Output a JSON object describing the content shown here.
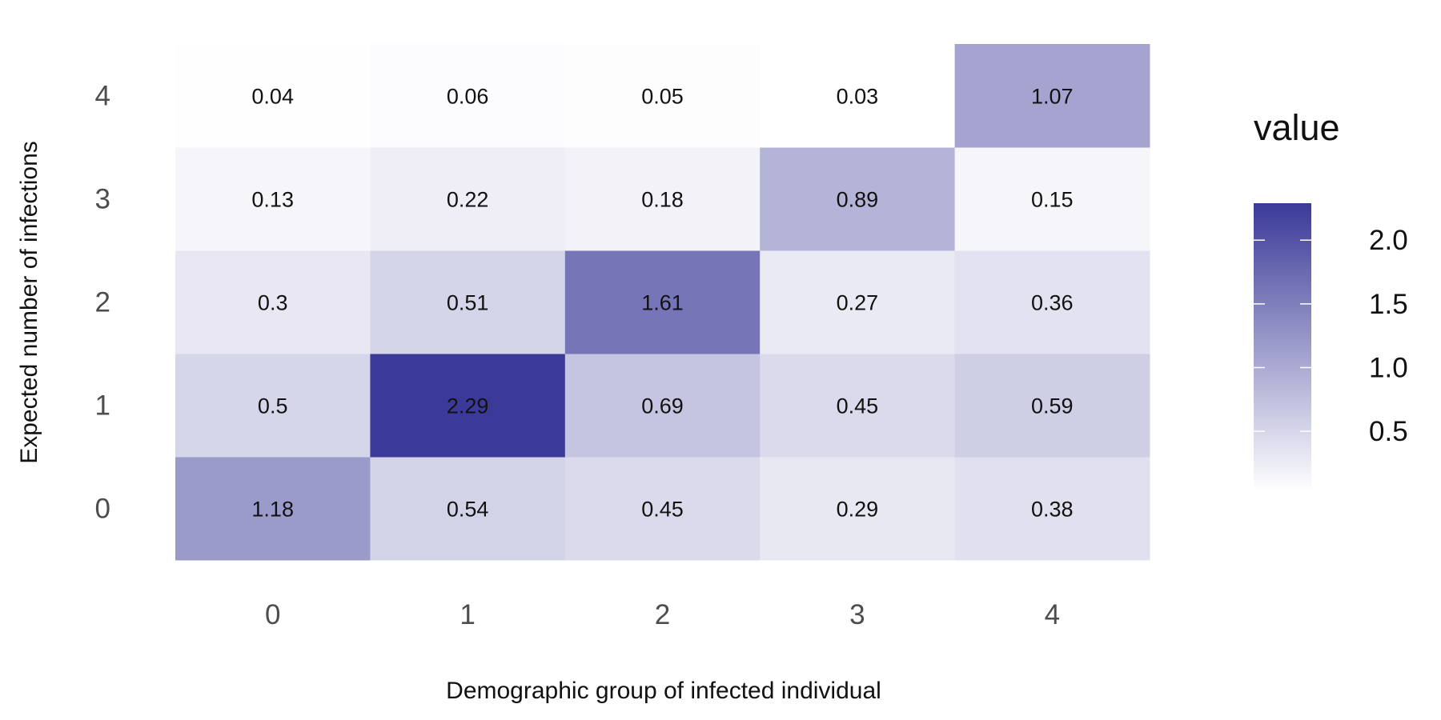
{
  "chart_data": {
    "type": "heatmap",
    "title": "",
    "xlabel": "Demographic group of infected individual",
    "ylabel": "Expected number of infections",
    "x_categories": [
      "0",
      "1",
      "2",
      "3",
      "4"
    ],
    "y_categories": [
      "0",
      "1",
      "2",
      "3",
      "4"
    ],
    "values": [
      [
        1.18,
        0.54,
        0.45,
        0.29,
        0.38
      ],
      [
        0.5,
        2.29,
        0.69,
        0.45,
        0.59
      ],
      [
        0.3,
        0.51,
        1.61,
        0.27,
        0.36
      ],
      [
        0.13,
        0.22,
        0.18,
        0.89,
        0.15
      ],
      [
        0.04,
        0.06,
        0.05,
        0.03,
        1.07
      ]
    ],
    "value_labels": [
      [
        "1.18",
        "0.54",
        "0.45",
        "0.29",
        "0.38"
      ],
      [
        "0.5",
        "2.29",
        "0.69",
        "0.45",
        "0.59"
      ],
      [
        "0.3",
        "0.51",
        "1.61",
        "0.27",
        "0.36"
      ],
      [
        "0.13",
        "0.22",
        "0.18",
        "0.89",
        "0.15"
      ],
      [
        "0.04",
        "0.06",
        "0.05",
        "0.03",
        "1.07"
      ]
    ],
    "legend": {
      "title": "value",
      "placement": "right",
      "ticks": [
        0.5,
        1.0,
        1.5,
        2.0
      ],
      "tick_labels": [
        "0.5",
        "1.0",
        "1.5",
        "2.0"
      ],
      "range": [
        0.03,
        2.29
      ]
    },
    "color_scale": {
      "low": "#ffffff",
      "high": "#3b3a98"
    },
    "grid": false
  }
}
